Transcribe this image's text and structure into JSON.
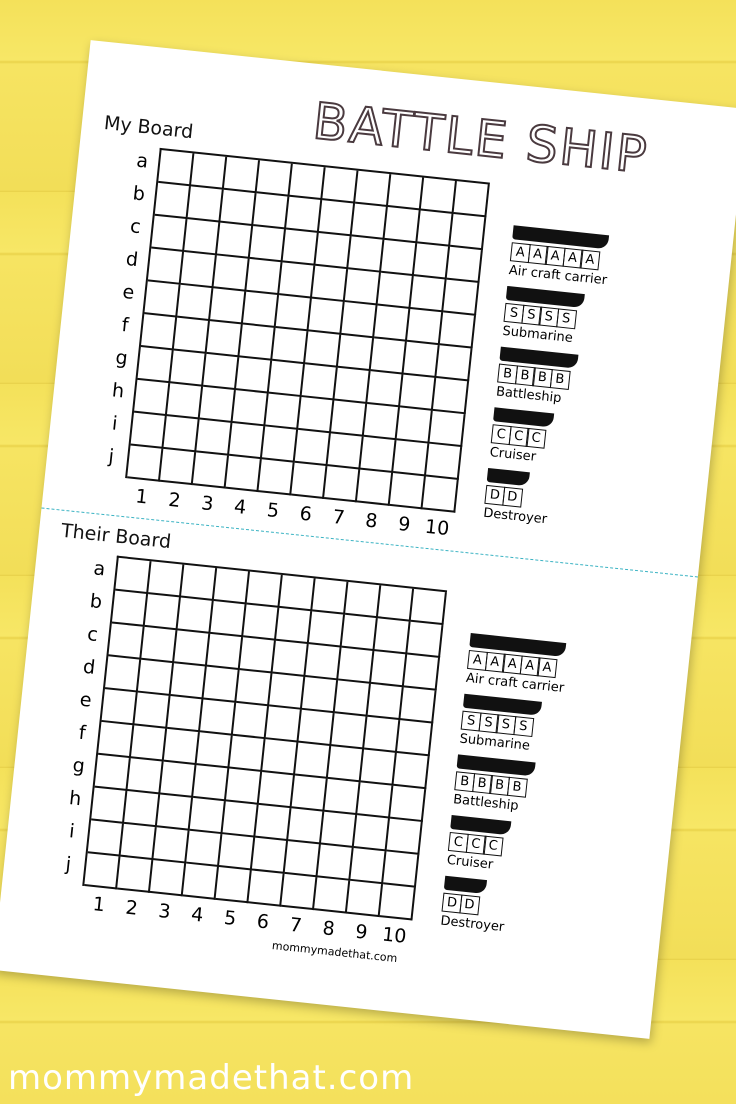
{
  "title": "BATTLE SHIP",
  "boards": [
    {
      "label": "My Board"
    },
    {
      "label": "Their Board"
    }
  ],
  "rows": [
    "a",
    "b",
    "c",
    "d",
    "e",
    "f",
    "g",
    "h",
    "i",
    "j"
  ],
  "columns": [
    "1",
    "2",
    "3",
    "4",
    "5",
    "6",
    "7",
    "8",
    "9",
    "10"
  ],
  "ships": [
    {
      "name": "Air craft carrier",
      "letter": "A",
      "size": 5
    },
    {
      "name": "Submarine",
      "letter": "S",
      "size": 4
    },
    {
      "name": "Battleship",
      "letter": "B",
      "size": 4
    },
    {
      "name": "Cruiser",
      "letter": "C",
      "size": 3
    },
    {
      "name": "Destroyer",
      "letter": "D",
      "size": 2
    }
  ],
  "credit": "mommymadethat.com",
  "watermark": "mommymadethat.com",
  "colors": {
    "background": "#f4e15a",
    "divider": "#3bb3c3",
    "ink": "#111111"
  }
}
